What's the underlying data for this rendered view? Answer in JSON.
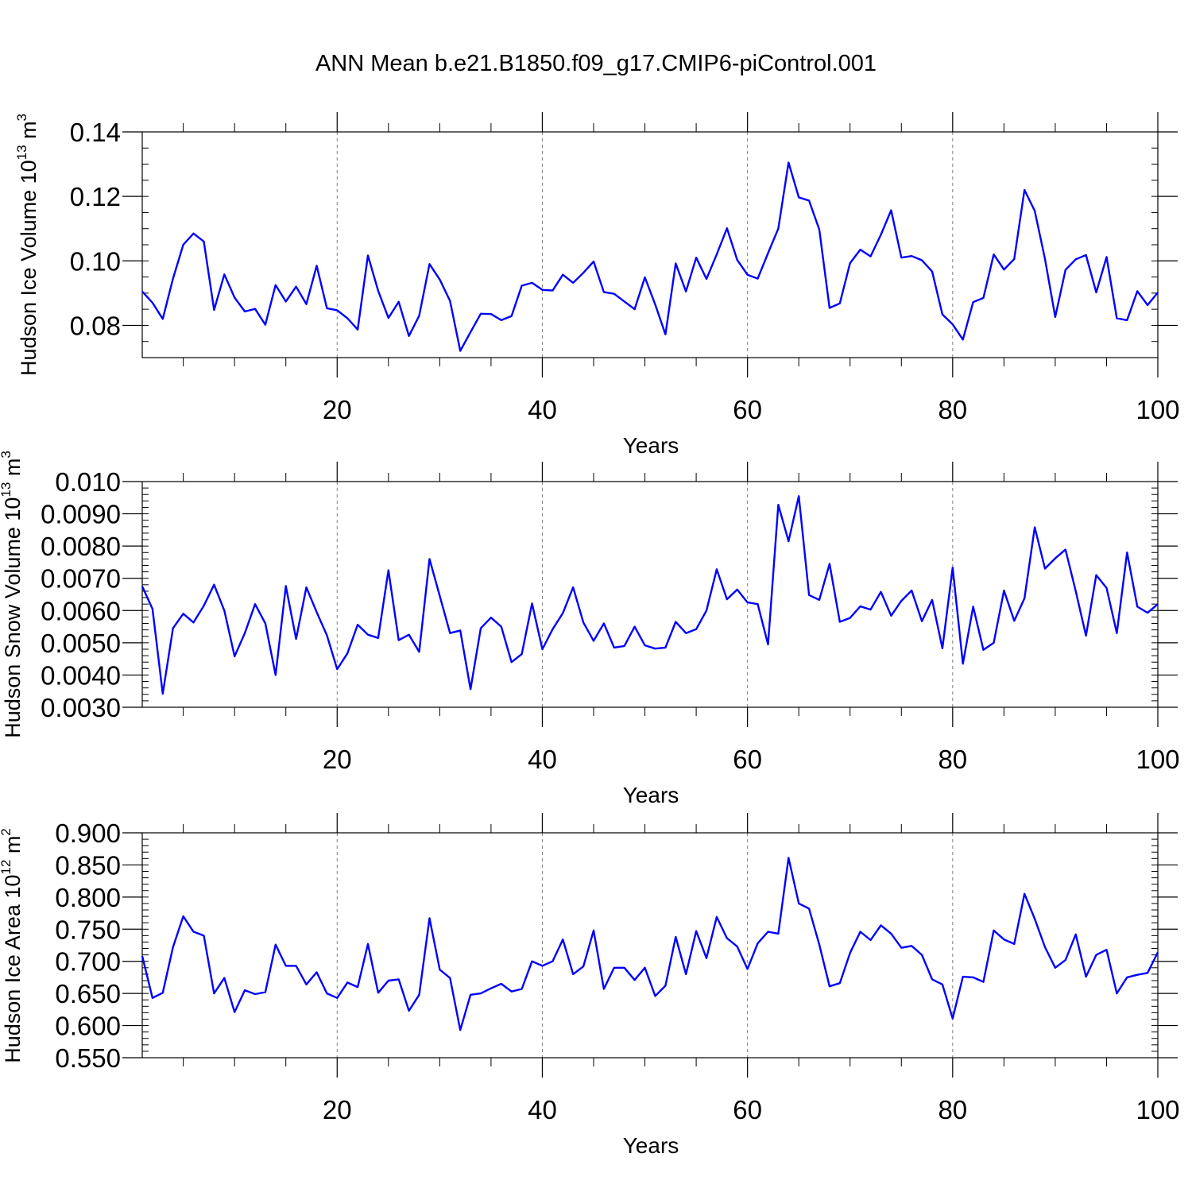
{
  "title": "ANN Mean b.e21.B1850.f09_g17.CMIP6-piControl.001",
  "colors": {
    "line": "#0000ff",
    "axis": "#000000",
    "grid": "#808080"
  },
  "chart_data": [
    {
      "type": "line",
      "ylabel_main": "Hudson Ice Volume 10",
      "ylabel_exp": "13",
      "ylabel_unit": "m",
      "ylabel_unit_exp": "3",
      "xlabel": "Years",
      "xlim": [
        1,
        100
      ],
      "ylim": [
        0.07,
        0.14
      ],
      "yticks": [
        0.08,
        0.1,
        0.12,
        0.14
      ],
      "ytick_labels": [
        "0.08",
        "0.10",
        "0.12",
        "0.14"
      ],
      "yminor_step": 0.005,
      "xticks": [
        20,
        40,
        60,
        80,
        100
      ],
      "xtick_labels": [
        "20",
        "40",
        "60",
        "80",
        "100"
      ],
      "grid_x": [
        20,
        40,
        60,
        80
      ],
      "series": [
        {
          "name": "Hudson Ice Volume",
          "values": [
            0.0905,
            0.087,
            0.082,
            0.0945,
            0.105,
            0.1085,
            0.106,
            0.0848,
            0.0958,
            0.0886,
            0.0843,
            0.0851,
            0.0802,
            0.0925,
            0.0874,
            0.092,
            0.0866,
            0.0985,
            0.0853,
            0.0847,
            0.0822,
            0.0787,
            0.1017,
            0.0907,
            0.0823,
            0.0873,
            0.0767,
            0.083,
            0.099,
            0.0942,
            0.0876,
            0.0721,
            0.0779,
            0.0836,
            0.0835,
            0.0816,
            0.0829,
            0.0923,
            0.0932,
            0.091,
            0.0908,
            0.0957,
            0.0932,
            0.0963,
            0.0998,
            0.0903,
            0.0898,
            0.0874,
            0.085,
            0.0949,
            0.0865,
            0.0772,
            0.0992,
            0.0905,
            0.101,
            0.0944,
            0.102,
            0.1101,
            0.1003,
            0.0957,
            0.0945,
            0.1024,
            0.11,
            0.1305,
            0.1197,
            0.1187,
            0.1097,
            0.0854,
            0.0868,
            0.0993,
            0.1035,
            0.1014,
            0.1081,
            0.1157,
            0.101,
            0.1015,
            0.1002,
            0.0967,
            0.0834,
            0.0803,
            0.0756,
            0.0872,
            0.0885,
            0.102,
            0.0973,
            0.1006,
            0.122,
            0.1155,
            0.1006,
            0.0826,
            0.0972,
            0.1005,
            0.1018,
            0.0902,
            0.1012,
            0.0822,
            0.0816,
            0.0906,
            0.0863,
            0.0902
          ]
        }
      ]
    },
    {
      "type": "line",
      "ylabel_main": "Hudson Snow Volume 10",
      "ylabel_exp": "13",
      "ylabel_unit": "m",
      "ylabel_unit_exp": "3",
      "xlabel": "Years",
      "xlim": [
        1,
        100
      ],
      "ylim": [
        0.003,
        0.01
      ],
      "yticks": [
        0.003,
        0.004,
        0.005,
        0.006,
        0.007,
        0.008,
        0.009,
        0.01
      ],
      "ytick_labels": [
        "0.0030",
        "0.0040",
        "0.0050",
        "0.0060",
        "0.0070",
        "0.0080",
        "0.0090",
        "0.010"
      ],
      "yminor_step": 0.0002,
      "xticks": [
        20,
        40,
        60,
        80,
        100
      ],
      "xtick_labels": [
        "20",
        "40",
        "60",
        "80",
        "100"
      ],
      "grid_x": [
        20,
        40,
        60,
        80
      ],
      "series": [
        {
          "name": "Hudson Snow Volume",
          "values": [
            0.00675,
            0.00605,
            0.00342,
            0.00545,
            0.0059,
            0.00563,
            0.00615,
            0.0068,
            0.006,
            0.00458,
            0.0053,
            0.0062,
            0.0056,
            0.004,
            0.00676,
            0.00512,
            0.00672,
            0.00595,
            0.00523,
            0.00418,
            0.00467,
            0.00556,
            0.00525,
            0.00515,
            0.00725,
            0.00508,
            0.00525,
            0.00472,
            0.0076,
            0.00645,
            0.0053,
            0.00538,
            0.00356,
            0.00545,
            0.00578,
            0.0055,
            0.0044,
            0.00465,
            0.00622,
            0.0048,
            0.00542,
            0.00592,
            0.00672,
            0.00563,
            0.00506,
            0.0056,
            0.00485,
            0.0049,
            0.0055,
            0.00492,
            0.00482,
            0.00485,
            0.00565,
            0.0053,
            0.00542,
            0.006,
            0.00728,
            0.00635,
            0.00665,
            0.00625,
            0.0062,
            0.00495,
            0.00928,
            0.00815,
            0.00955,
            0.00648,
            0.00633,
            0.00745,
            0.00565,
            0.00577,
            0.00613,
            0.00603,
            0.00658,
            0.00584,
            0.0063,
            0.00662,
            0.00567,
            0.00633,
            0.00483,
            0.00733,
            0.00435,
            0.00612,
            0.00478,
            0.005,
            0.00662,
            0.00568,
            0.00638,
            0.00858,
            0.0073,
            0.00762,
            0.00789,
            0.0066,
            0.00522,
            0.0071,
            0.0067,
            0.0053,
            0.0078,
            0.00612,
            0.00593,
            0.0062
          ]
        }
      ]
    },
    {
      "type": "line",
      "ylabel_main": "Hudson Ice Area 10",
      "ylabel_exp": "12",
      "ylabel_unit": "m",
      "ylabel_unit_exp": "2",
      "xlabel": "Years",
      "xlim": [
        1,
        100
      ],
      "ylim": [
        0.55,
        0.9
      ],
      "yticks": [
        0.55,
        0.6,
        0.65,
        0.7,
        0.75,
        0.8,
        0.85,
        0.9
      ],
      "ytick_labels": [
        "0.550",
        "0.600",
        "0.650",
        "0.700",
        "0.750",
        "0.800",
        "0.850",
        "0.900"
      ],
      "yminor_step": 0.01,
      "xticks": [
        20,
        40,
        60,
        80,
        100
      ],
      "xtick_labels": [
        "20",
        "40",
        "60",
        "80",
        "100"
      ],
      "grid_x": [
        20,
        40,
        60,
        80
      ],
      "series": [
        {
          "name": "Hudson Ice Area",
          "values": [
            0.708,
            0.643,
            0.651,
            0.722,
            0.77,
            0.746,
            0.74,
            0.65,
            0.674,
            0.621,
            0.655,
            0.649,
            0.652,
            0.726,
            0.693,
            0.693,
            0.664,
            0.683,
            0.65,
            0.643,
            0.667,
            0.66,
            0.727,
            0.651,
            0.67,
            0.672,
            0.623,
            0.648,
            0.767,
            0.687,
            0.674,
            0.593,
            0.648,
            0.65,
            0.658,
            0.665,
            0.653,
            0.657,
            0.7,
            0.693,
            0.7,
            0.734,
            0.68,
            0.692,
            0.748,
            0.657,
            0.69,
            0.69,
            0.671,
            0.69,
            0.646,
            0.662,
            0.738,
            0.68,
            0.747,
            0.705,
            0.769,
            0.736,
            0.723,
            0.688,
            0.728,
            0.746,
            0.743,
            0.861,
            0.79,
            0.782,
            0.726,
            0.661,
            0.666,
            0.713,
            0.746,
            0.733,
            0.756,
            0.743,
            0.721,
            0.724,
            0.71,
            0.672,
            0.664,
            0.611,
            0.676,
            0.675,
            0.668,
            0.748,
            0.734,
            0.727,
            0.805,
            0.766,
            0.722,
            0.69,
            0.702,
            0.742,
            0.676,
            0.71,
            0.718,
            0.65,
            0.675,
            0.679,
            0.682,
            0.714
          ]
        }
      ]
    }
  ]
}
